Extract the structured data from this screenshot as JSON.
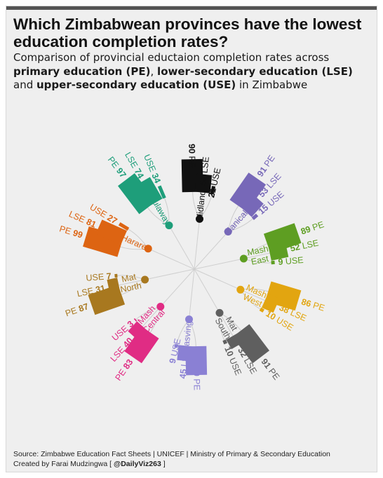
{
  "title": "Which Zimbabwean provinces have the lowest education completion rates?",
  "subtitle": {
    "line1": "Comparison of provincial eductaion completion rates across",
    "pe": "primary education (PE)",
    "sep1": ", ",
    "lse": "lower-secondary education (LSE)",
    "line3_prefix": "and ",
    "use": "upper-secondary education (USE)",
    "line3_suffix": " in Zimbabwe"
  },
  "chart_data": {
    "type": "radial-bar",
    "levels": [
      "PE",
      "LSE",
      "USE"
    ],
    "series": [
      {
        "province": "Bulawayo",
        "color": "#1e9e7a",
        "values": {
          "PE": 97,
          "LSE": 74,
          "USE": 34
        }
      },
      {
        "province": "Midlands",
        "color": "#111111",
        "values": {
          "PE": 90,
          "LSE": 54,
          "USE": 21
        }
      },
      {
        "province": "Manical...",
        "color": "#7768b8",
        "values": {
          "PE": 91,
          "LSE": 53,
          "USE": 15
        }
      },
      {
        "province": "Mash East",
        "color": "#5e9e22",
        "values": {
          "PE": 89,
          "LSE": 52,
          "USE": 9
        }
      },
      {
        "province": "Mash West",
        "color": "#e2a510",
        "values": {
          "PE": 86,
          "LSE": 38,
          "USE": 10
        }
      },
      {
        "province": "Mat South",
        "color": "#5f5f5f",
        "values": {
          "PE": 91,
          "LSE": 32,
          "USE": 10
        }
      },
      {
        "province": "Masvingo",
        "color": "#8a80d4",
        "values": {
          "PE": 79,
          "LSE": 45,
          "USE": 9
        }
      },
      {
        "province": "Mash Central",
        "color": "#e02c84",
        "values": {
          "PE": 83,
          "LSE": 40,
          "USE": 3
        }
      },
      {
        "province": "Mat North",
        "color": "#a8781f",
        "values": {
          "PE": 87,
          "LSE": 31,
          "USE": 7
        }
      },
      {
        "province": "Harare",
        "color": "#dd6412",
        "values": {
          "PE": 99,
          "LSE": 81,
          "USE": 27
        }
      }
    ]
  },
  "source": {
    "line1": "Source: Zimbabwe Education Fact Sheets | UNICEF | Ministry of Primary & Secondary Education",
    "line2_prefix": "Created by Farai Mudzingwa [ ",
    "handle": "@DailyViz263",
    "line2_suffix": " ]"
  }
}
